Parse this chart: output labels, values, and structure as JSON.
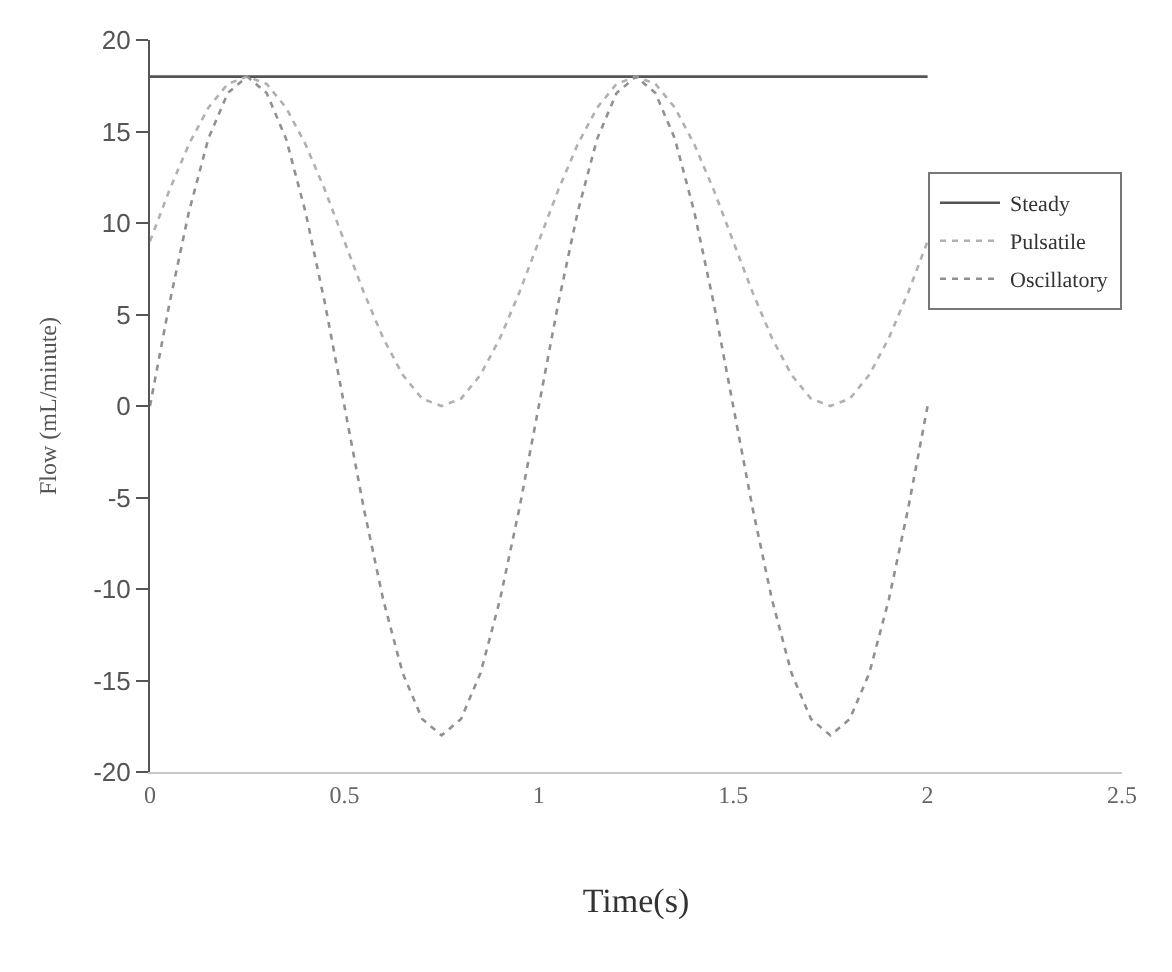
{
  "chart_data": {
    "type": "line",
    "xlabel": "Time(s)",
    "ylabel": "Flow (mL/minute)",
    "x": [
      0,
      0.05,
      0.1,
      0.15,
      0.2,
      0.25,
      0.3,
      0.35,
      0.4,
      0.45,
      0.5,
      0.55,
      0.6,
      0.65,
      0.7,
      0.75,
      0.8,
      0.85,
      0.9,
      0.95,
      1,
      1.05,
      1.1,
      1.15,
      1.2,
      1.25,
      1.3,
      1.35,
      1.4,
      1.45,
      1.5,
      1.55,
      1.6,
      1.65,
      1.7,
      1.75,
      1.8,
      1.85,
      1.9,
      1.95,
      2
    ],
    "series": [
      {
        "name": "Steady",
        "color": "#555555",
        "line_style": "solid",
        "x": [
          0,
          2
        ],
        "values": [
          18,
          18
        ]
      },
      {
        "name": "Pulsatile",
        "color": "#b0b0b0",
        "line_style": "dotted",
        "values": [
          9,
          11.8,
          14.3,
          16.3,
          17.6,
          18,
          17.6,
          16.3,
          14.3,
          11.8,
          9,
          6.2,
          3.7,
          1.7,
          0.4,
          0,
          0.4,
          1.7,
          3.7,
          6.2,
          9,
          11.8,
          14.3,
          16.3,
          17.6,
          18,
          17.6,
          16.3,
          14.3,
          11.8,
          9,
          6.2,
          3.7,
          1.7,
          0.4,
          0,
          0.4,
          1.7,
          3.7,
          6.2,
          9
        ]
      },
      {
        "name": "Oscillatory",
        "color": "#909090",
        "line_style": "dotted",
        "values": [
          0,
          5.6,
          10.6,
          14.6,
          17.1,
          18,
          17.1,
          14.6,
          10.6,
          5.6,
          0,
          -5.6,
          -10.6,
          -14.6,
          -17.1,
          -18,
          -17.1,
          -14.6,
          -10.6,
          -5.6,
          0,
          5.6,
          10.6,
          14.6,
          17.1,
          18,
          17.1,
          14.6,
          10.6,
          5.6,
          0,
          -5.6,
          -10.6,
          -14.6,
          -17.1,
          -18,
          -17.1,
          -14.6,
          -10.6,
          -5.6,
          0
        ]
      }
    ],
    "xlim": [
      0,
      2.5
    ],
    "xticks": [
      0,
      0.5,
      1,
      1.5,
      2,
      2.5
    ],
    "ylim": [
      -20,
      20
    ],
    "yticks": [
      -20,
      -15,
      -10,
      -5,
      0,
      5,
      10,
      15,
      20
    ],
    "legend": "top right",
    "marker": "none"
  }
}
